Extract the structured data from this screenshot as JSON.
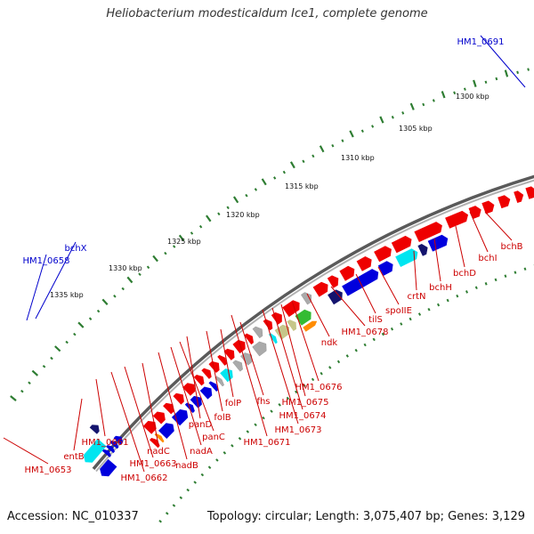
{
  "title": "Heliobacterium modesticaldum Ice1, complete genome",
  "footer": {
    "accession": "Accession: NC_010337",
    "summary": "Topology: circular; Length: 3,075,407 bp; Genes: 3,129"
  },
  "colors": {
    "backbone": "#7a7a7a",
    "tick": "#2e7d32",
    "forward_label": "#cc0000",
    "reverse_label": "#0000cc",
    "gene_red": "#ee0000",
    "gene_blue": "#0000dd",
    "gene_cyan": "#00e5f0",
    "gene_navy": "#14146e",
    "gene_grey": "#aaaaaa",
    "gene_olive": "#c6c68a",
    "gene_green": "#33bb33",
    "gene_orange": "#ff8c00"
  },
  "scale_ticks": [
    "1300 kbp",
    "1305 kbp",
    "1310 kbp",
    "1315 kbp",
    "1320 kbp",
    "1325 kbp",
    "1330 kbp",
    "1335 kbp"
  ],
  "reverse_labels": [
    "HM1_0691",
    "bchX",
    "HM1_0658"
  ],
  "forward_labels": [
    "bchB",
    "bchI",
    "bchD",
    "bchH",
    "crtN",
    "spoIIE",
    "tilS",
    "HM1_0678",
    "ndk",
    "HM1_0676",
    "HM1_0675",
    "HM1_0674",
    "HM1_0673",
    "HM1_0671",
    "fhs",
    "folP",
    "folB",
    "panD",
    "panC",
    "nadA",
    "nadB",
    "nadC",
    "HM1_0663",
    "HM1_0662",
    "HM1_0661",
    "entB",
    "HM1_0653"
  ]
}
